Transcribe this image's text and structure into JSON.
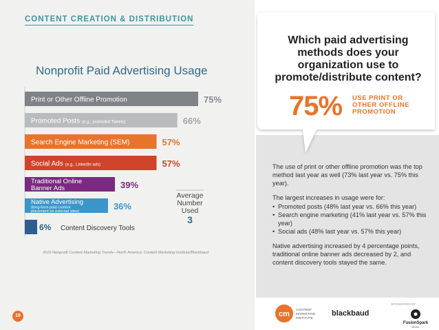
{
  "header": {
    "section_title": "CONTENT CREATION & DISTRIBUTION"
  },
  "colors": {
    "accent": "#e8732a",
    "teal": "#3b97a0",
    "navy": "#2f6a8a"
  },
  "chart_data": {
    "type": "bar",
    "orientation": "horizontal",
    "title": "Nonprofit Paid Advertising Usage",
    "xlim": [
      0,
      100
    ],
    "categories": [
      "Print or Other Offline Promotion",
      "Promoted Posts",
      "Search Engine Marketing (SEM)",
      "Social Ads",
      "Traditional Online Banner Ads",
      "Native Advertising",
      "Content Discovery Tools"
    ],
    "values": [
      75,
      66,
      57,
      57,
      39,
      36,
      6
    ],
    "data_labels": [
      "75%",
      "66%",
      "57%",
      "57%",
      "39%",
      "36%",
      "6%"
    ],
    "bars": [
      {
        "label": "Print or Other Offline Promotion",
        "sublabel": "",
        "color": "#7f8387",
        "label_color": "#878a8d"
      },
      {
        "label": "Promoted Posts",
        "sublabel": "(e.g., promoted Tweets)",
        "color": "#b9bcbf",
        "label_color": "#a3a6a9"
      },
      {
        "label": "Search Engine Marketing (SEM)",
        "sublabel": "",
        "color": "#e8732a",
        "label_color": "#e8732a"
      },
      {
        "label": "Social Ads",
        "sublabel": "(e.g., LinkedIn ads)",
        "color": "#d0442a",
        "label_color": "#d0442a"
      },
      {
        "label": "Traditional Online",
        "label2": "Banner Ads",
        "sublabel": "",
        "color": "#7a2a80",
        "label_color": "#7a2a80"
      },
      {
        "label": "Native Advertising",
        "sublabel": "(long-form paid content",
        "sublabel2": "placement on external sites)",
        "color": "#3a95c9",
        "label_color": "#3a95c9"
      },
      {
        "label": "Content Discovery Tools",
        "sublabel": "",
        "color": "#2f5e8e",
        "label_color": "#2f5e8e"
      }
    ],
    "average": {
      "line1": "Average",
      "line2": "Number",
      "line3": "Used",
      "value": "3"
    },
    "source": "2016 Nonprofit Content Marketing Trends—North America: Content Marketing Institute/Blackbaud"
  },
  "callout": {
    "question": "Which paid advertising methods does your organization use to promote/distribute content?",
    "big_percent": "75%",
    "big_label": "USE PRINT OR OTHER OFFLINE PROMOTION"
  },
  "body": {
    "p1": "The use of print or other offline promotion was the top method last year as well (73% last year vs. 75% this year).",
    "p2": "The largest increases in usage were for:",
    "bullets": [
      "Promoted posts (48% last year vs. 66% this year)",
      "Search engine marketing (41% last year vs. 57% this year)",
      "Social ads (48% last year vs. 57% this year)"
    ],
    "p3": "Native advertising increased by 4 percentage points, traditional online banner ads decreased by 2, and content discovery tools stayed the same."
  },
  "footer": {
    "page_number": "19",
    "cmi_logo": "cm",
    "cmi_text": [
      "CONTENT",
      "MARKETING",
      "INSTITUTE"
    ],
    "blackbaud": "blackbaud",
    "sponsored_by": "SPONSORED BY",
    "fusionspark": "FusionSpark",
    "fusionspark_sub": "MEDIA"
  }
}
